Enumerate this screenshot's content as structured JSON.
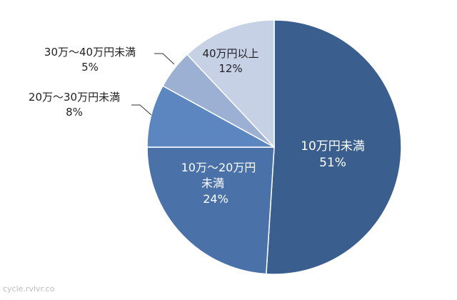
{
  "chart_data": {
    "type": "pie",
    "title": "",
    "start": "top",
    "direction": "clockwise",
    "slices": [
      {
        "label": "10万円未満",
        "value": 51,
        "value_label": "51%",
        "color": "#3a5f8f",
        "label_color": "#ffffff",
        "label_inside": true
      },
      {
        "label": "10万〜20万円未満",
        "value": 24,
        "value_label": "24%",
        "color": "#4a72a8",
        "label_color": "#ffffff",
        "label_inside": true
      },
      {
        "label": "20万〜30万円未満",
        "value": 8,
        "value_label": "8%",
        "color": "#5b86bf",
        "label_color": "#222222",
        "label_inside": false
      },
      {
        "label": "30万〜40万円未満",
        "value": 5,
        "value_label": "5%",
        "color": "#9bb0d3",
        "label_color": "#222222",
        "label_inside": false
      },
      {
        "label": "40万円以上",
        "value": 12,
        "value_label": "12%",
        "color": "#c6d1e6",
        "label_color": "#222222",
        "label_inside": true
      }
    ]
  },
  "watermark": "cycle.rvlvr.co"
}
